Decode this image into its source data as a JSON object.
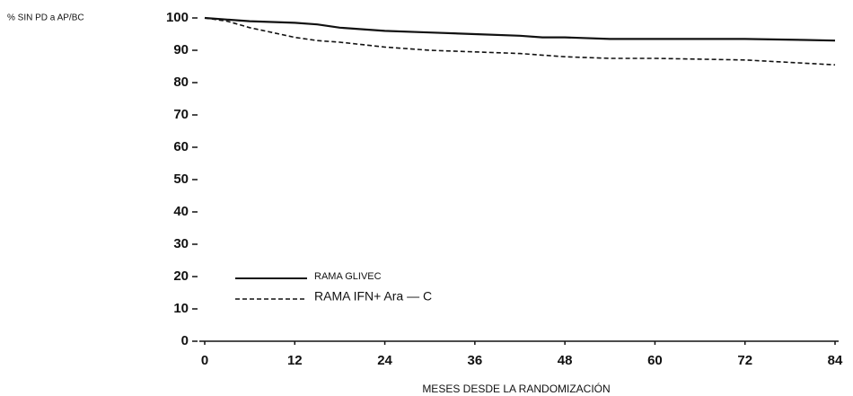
{
  "chart_data": {
    "type": "line",
    "ylabel": "% SIN PD a AP/BC",
    "xlabel": "MESES DESDE LA RANDOMIZACIÓN",
    "x": [
      0,
      3,
      6,
      12,
      15,
      18,
      24,
      30,
      36,
      42,
      45,
      48,
      54,
      60,
      72,
      80,
      84
    ],
    "series": [
      {
        "name": "RAMA GLIVEC",
        "color": "#111111",
        "dash": "solid",
        "values": [
          100,
          99.5,
          99,
          98.5,
          98,
          97,
          96,
          95.5,
          95,
          94.5,
          94,
          94,
          93.5,
          93.5,
          93.5,
          93.2,
          93
        ]
      },
      {
        "name": "RAMA IFN+ Ara — C",
        "color": "#111111",
        "dash": "dashed",
        "values": [
          100,
          99,
          97,
          94,
          93,
          92.5,
          91,
          90,
          89.5,
          89,
          88.5,
          88,
          87.5,
          87.5,
          87,
          86,
          85.5
        ]
      }
    ],
    "xlim": [
      0,
      84
    ],
    "xticks": [
      0,
      12,
      24,
      36,
      48,
      60,
      72,
      84
    ],
    "ylim": [
      0,
      100
    ],
    "yticks": [
      0,
      10,
      20,
      30,
      40,
      50,
      60,
      70,
      80,
      90,
      100
    ],
    "grid": false,
    "legend": "lower left"
  }
}
